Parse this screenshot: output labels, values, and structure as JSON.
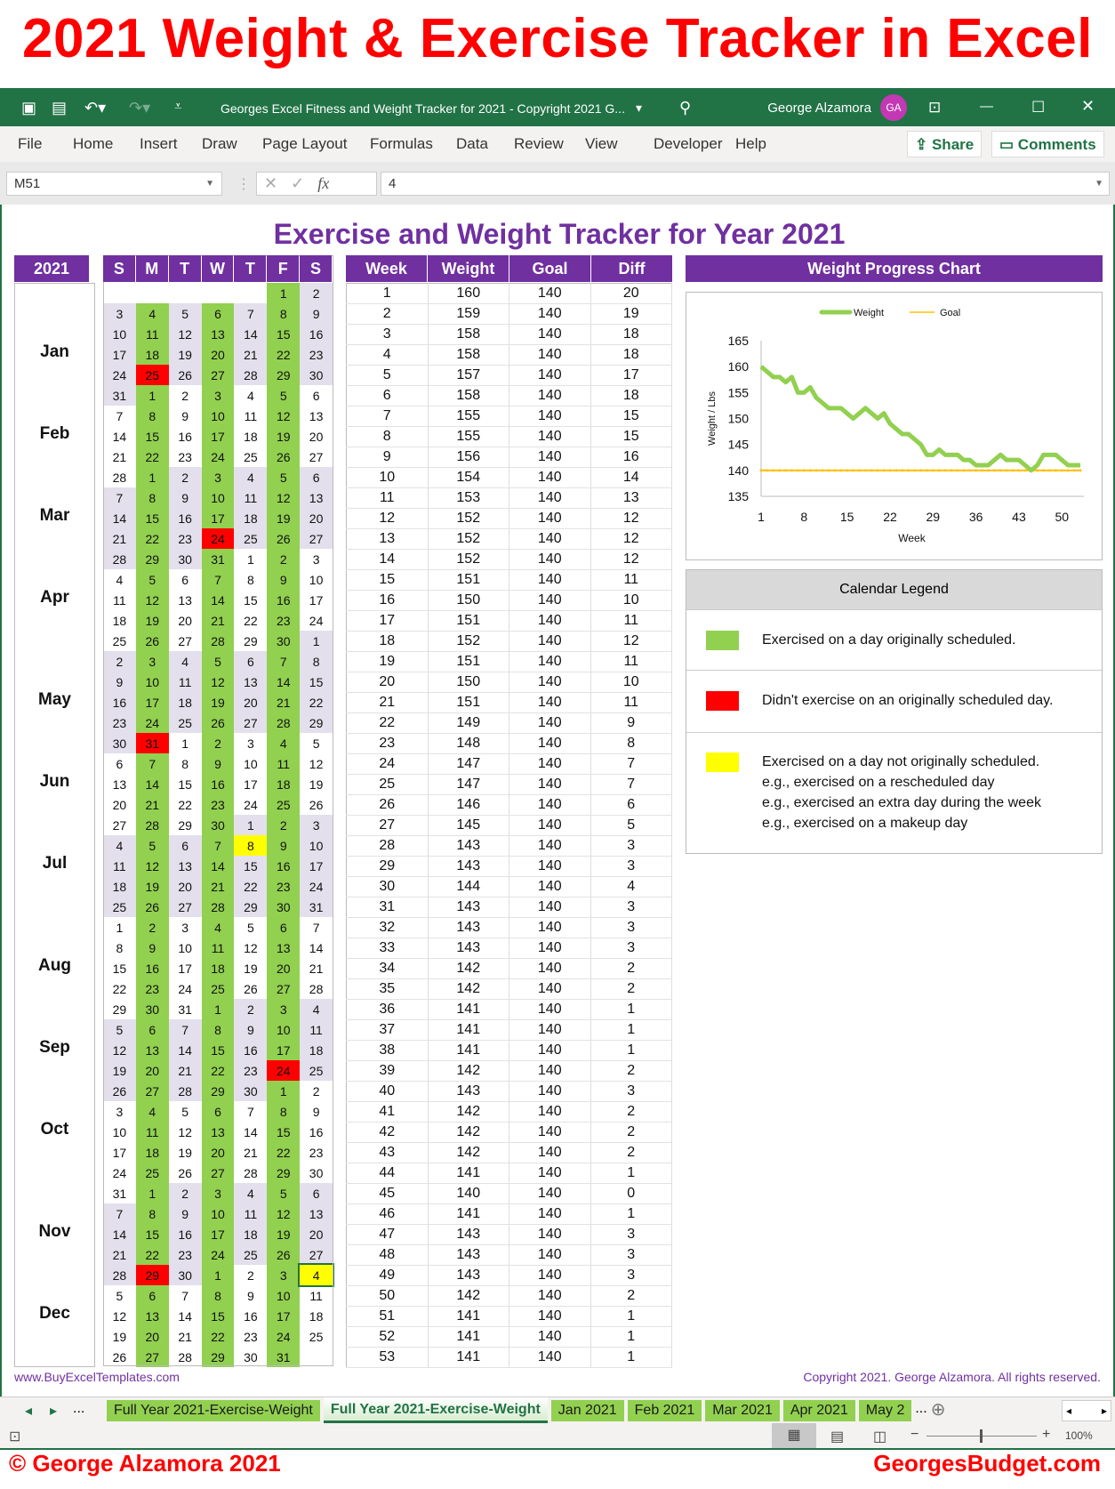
{
  "banner": {
    "title": "2021 Weight & Exercise Tracker in Excel",
    "left_credit": "© George Alzamora 2021",
    "right_credit": "GeorgesBudget.com"
  },
  "window": {
    "title": "Georges Excel Fitness and Weight Tracker for 2021 - Copyright 2021 G...",
    "user": "George Alzamora",
    "avatar": "GA",
    "accent": "#217346"
  },
  "ribbon": {
    "tabs": [
      "File",
      "Home",
      "Insert",
      "Draw",
      "Page Layout",
      "Formulas",
      "Data",
      "Review",
      "View",
      "Developer",
      "Help"
    ],
    "share": "Share",
    "comments": "Comments"
  },
  "formula_bar": {
    "name_box": "M51",
    "value": "4"
  },
  "sheet": {
    "title": "Exercise and Weight Tracker for Year 2021",
    "footer_left": "www.BuyExcelTemplates.com",
    "footer_right": "Copyright 2021.  George Alzamora.  All rights reserved.",
    "header_color": "#7030a0"
  },
  "calendar": {
    "year_header": "2021",
    "day_headers": [
      "S",
      "M",
      "T",
      "W",
      "T",
      "F",
      "S"
    ],
    "months": [
      "Jan",
      "Feb",
      "Mar",
      "Apr",
      "May",
      "Jun",
      "Jul",
      "Aug",
      "Sep",
      "Oct",
      "Nov",
      "Dec"
    ],
    "colors": {
      "exercised": "#92d050",
      "missed": "#ff0000",
      "extra": "#ffff00",
      "alt_month": "#e4dfec"
    },
    "missed_days": [
      [
        1,
        25
      ],
      [
        3,
        24
      ],
      [
        5,
        31
      ],
      [
        9,
        24
      ],
      [
        11,
        29
      ]
    ],
    "extra_days": [
      [
        7,
        8
      ],
      [
        12,
        4
      ]
    ],
    "weeks": [
      [
        null,
        null,
        null,
        null,
        null,
        1,
        2
      ],
      [
        3,
        4,
        5,
        6,
        7,
        8,
        9
      ],
      [
        10,
        11,
        12,
        13,
        14,
        15,
        16
      ],
      [
        17,
        18,
        19,
        20,
        21,
        22,
        23
      ],
      [
        24,
        25,
        26,
        27,
        28,
        29,
        30
      ],
      [
        31,
        1,
        2,
        3,
        4,
        5,
        6
      ],
      [
        7,
        8,
        9,
        10,
        11,
        12,
        13
      ],
      [
        14,
        15,
        16,
        17,
        18,
        19,
        20
      ],
      [
        21,
        22,
        23,
        24,
        25,
        26,
        27
      ],
      [
        28,
        1,
        2,
        3,
        4,
        5,
        6
      ],
      [
        7,
        8,
        9,
        10,
        11,
        12,
        13
      ],
      [
        14,
        15,
        16,
        17,
        18,
        19,
        20
      ],
      [
        21,
        22,
        23,
        24,
        25,
        26,
        27
      ],
      [
        28,
        29,
        30,
        31,
        1,
        2,
        3
      ],
      [
        4,
        5,
        6,
        7,
        8,
        9,
        10
      ],
      [
        11,
        12,
        13,
        14,
        15,
        16,
        17
      ],
      [
        18,
        19,
        20,
        21,
        22,
        23,
        24
      ],
      [
        25,
        26,
        27,
        28,
        29,
        30,
        1
      ],
      [
        2,
        3,
        4,
        5,
        6,
        7,
        8
      ],
      [
        9,
        10,
        11,
        12,
        13,
        14,
        15
      ],
      [
        16,
        17,
        18,
        19,
        20,
        21,
        22
      ],
      [
        23,
        24,
        25,
        26,
        27,
        28,
        29
      ],
      [
        30,
        31,
        1,
        2,
        3,
        4,
        5
      ],
      [
        6,
        7,
        8,
        9,
        10,
        11,
        12
      ],
      [
        13,
        14,
        15,
        16,
        17,
        18,
        19
      ],
      [
        20,
        21,
        22,
        23,
        24,
        25,
        26
      ],
      [
        27,
        28,
        29,
        30,
        1,
        2,
        3
      ],
      [
        4,
        5,
        6,
        7,
        8,
        9,
        10
      ],
      [
        11,
        12,
        13,
        14,
        15,
        16,
        17
      ],
      [
        18,
        19,
        20,
        21,
        22,
        23,
        24
      ],
      [
        25,
        26,
        27,
        28,
        29,
        30,
        31
      ],
      [
        1,
        2,
        3,
        4,
        5,
        6,
        7
      ],
      [
        8,
        9,
        10,
        11,
        12,
        13,
        14
      ],
      [
        15,
        16,
        17,
        18,
        19,
        20,
        21
      ],
      [
        22,
        23,
        24,
        25,
        26,
        27,
        28
      ],
      [
        29,
        30,
        31,
        1,
        2,
        3,
        4
      ],
      [
        5,
        6,
        7,
        8,
        9,
        10,
        11
      ],
      [
        12,
        13,
        14,
        15,
        16,
        17,
        18
      ],
      [
        19,
        20,
        21,
        22,
        23,
        24,
        25
      ],
      [
        26,
        27,
        28,
        29,
        30,
        1,
        2
      ],
      [
        3,
        4,
        5,
        6,
        7,
        8,
        9
      ],
      [
        10,
        11,
        12,
        13,
        14,
        15,
        16
      ],
      [
        17,
        18,
        19,
        20,
        21,
        22,
        23
      ],
      [
        24,
        25,
        26,
        27,
        28,
        29,
        30
      ],
      [
        31,
        1,
        2,
        3,
        4,
        5,
        6
      ],
      [
        7,
        8,
        9,
        10,
        11,
        12,
        13
      ],
      [
        14,
        15,
        16,
        17,
        18,
        19,
        20
      ],
      [
        21,
        22,
        23,
        24,
        25,
        26,
        27
      ],
      [
        28,
        29,
        30,
        1,
        2,
        3,
        4
      ],
      [
        5,
        6,
        7,
        8,
        9,
        10,
        11
      ],
      [
        12,
        13,
        14,
        15,
        16,
        17,
        18
      ],
      [
        19,
        20,
        21,
        22,
        23,
        24,
        25
      ],
      [
        26,
        27,
        28,
        29,
        30,
        31,
        null
      ]
    ]
  },
  "weight_table": {
    "headers": [
      "Week",
      "Weight",
      "Goal",
      "Diff"
    ],
    "goal": 140,
    "weights": [
      160,
      159,
      158,
      158,
      157,
      158,
      155,
      155,
      156,
      154,
      153,
      152,
      152,
      152,
      151,
      150,
      151,
      152,
      151,
      150,
      151,
      149,
      148,
      147,
      147,
      146,
      145,
      143,
      143,
      144,
      143,
      143,
      143,
      142,
      142,
      141,
      141,
      141,
      142,
      143,
      142,
      142,
      142,
      141,
      140,
      141,
      143,
      143,
      143,
      142,
      141,
      141,
      141
    ],
    "diffs": [
      20,
      19,
      18,
      18,
      17,
      18,
      15,
      15,
      16,
      14,
      13,
      12,
      12,
      12,
      11,
      10,
      11,
      12,
      11,
      10,
      11,
      9,
      8,
      7,
      7,
      6,
      5,
      3,
      3,
      4,
      3,
      3,
      3,
      2,
      2,
      1,
      1,
      1,
      2,
      3,
      2,
      2,
      2,
      1,
      0,
      1,
      3,
      3,
      3,
      2,
      1,
      1,
      1
    ]
  },
  "chart_data": {
    "type": "line",
    "title": "Weight Progress Chart",
    "xlabel": "Week",
    "ylabel": "Weight / Lbs",
    "ylim": [
      135,
      165
    ],
    "yticks": [
      135,
      140,
      145,
      150,
      155,
      160,
      165
    ],
    "xticks": [
      1,
      8,
      15,
      22,
      29,
      36,
      43,
      50
    ],
    "xlim": [
      1,
      53
    ],
    "legend": "top",
    "grid": false,
    "series": [
      {
        "name": "Weight",
        "color": "#92d050",
        "values": [
          160,
          159,
          158,
          158,
          157,
          158,
          155,
          155,
          156,
          154,
          153,
          152,
          152,
          152,
          151,
          150,
          151,
          152,
          151,
          150,
          151,
          149,
          148,
          147,
          147,
          146,
          145,
          143,
          143,
          144,
          143,
          143,
          143,
          142,
          142,
          141,
          141,
          141,
          142,
          143,
          142,
          142,
          142,
          141,
          140,
          141,
          143,
          143,
          143,
          142,
          141,
          141,
          141
        ]
      },
      {
        "name": "Goal",
        "color": "#ffc000",
        "values": [
          140,
          140,
          140,
          140,
          140,
          140,
          140,
          140,
          140,
          140,
          140,
          140,
          140,
          140,
          140,
          140,
          140,
          140,
          140,
          140,
          140,
          140,
          140,
          140,
          140,
          140,
          140,
          140,
          140,
          140,
          140,
          140,
          140,
          140,
          140,
          140,
          140,
          140,
          140,
          140,
          140,
          140,
          140,
          140,
          140,
          140,
          140,
          140,
          140,
          140,
          140,
          140,
          140
        ]
      }
    ]
  },
  "legend": {
    "title": "Calendar Legend",
    "items": [
      {
        "text": "Exercised on a day originally scheduled.",
        "color": "#92d050"
      },
      {
        "text": "Didn't exercise on an originally scheduled day.",
        "color": "#ff0000"
      },
      {
        "text": "Exercised on a day not originally scheduled.",
        "color": "#ffff00",
        "notes": [
          "e.g., exercised on a rescheduled day",
          "e.g., exercised an extra day during the week",
          "e.g., exercised on a makeup day"
        ]
      }
    ]
  },
  "sheet_tabs": {
    "ellipsis": "...",
    "tabs": [
      "Full Year 2021-Exercise-Weight",
      "Full Year 2021-Exercise-Weight",
      "Jan 2021",
      "Feb 2021",
      "Mar 2021",
      "Apr 2021",
      "May 2"
    ],
    "active": 1
  },
  "status": {
    "zoom": "100%"
  }
}
